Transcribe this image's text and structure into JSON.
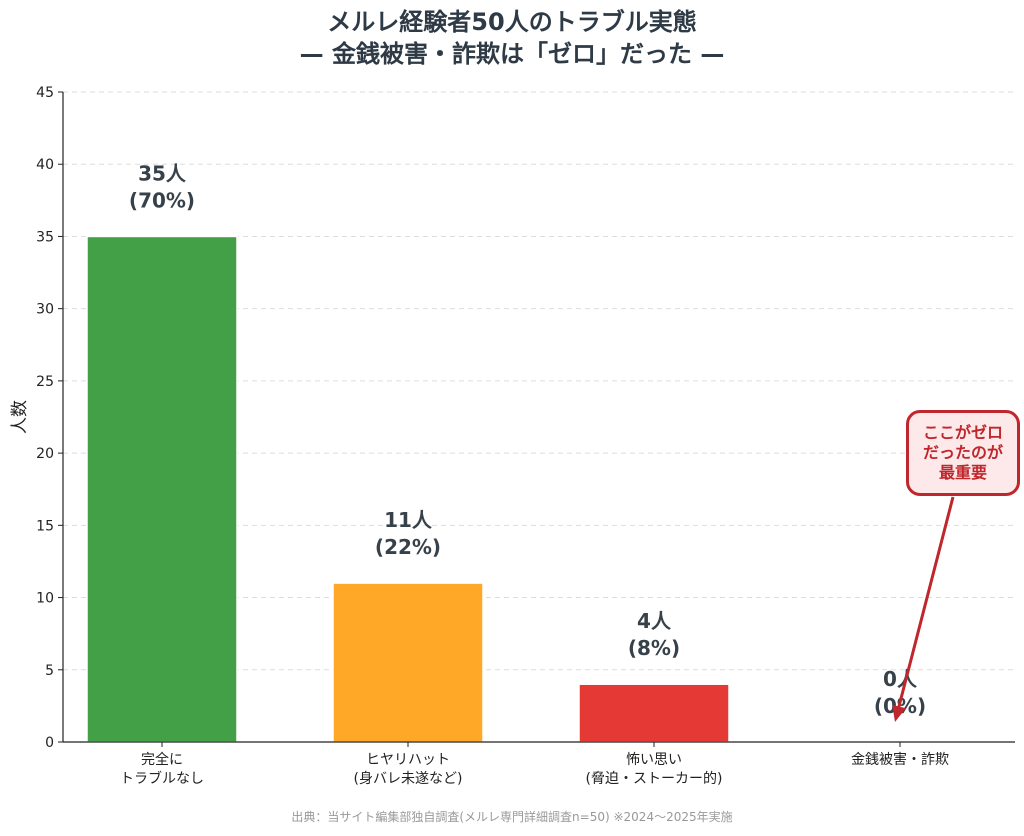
{
  "title": {
    "line1": "メルレ経験者50人のトラブル実態",
    "line2": "— 金銭被害・詐欺は「ゼロ」だった —"
  },
  "source": "出典：当サイト編集部独自調査(メルレ専門詳細調査n=50) ※2024〜2025年実施",
  "annotation": {
    "lines": [
      "ここがゼロ",
      "だったのが",
      "最重要"
    ],
    "color": "#c0272d",
    "background": "#fde9e9"
  },
  "chart_data": {
    "type": "bar",
    "title": "メルレ経験者50人のトラブル実態 — 金銭被害・詐欺は「ゼロ」だった —",
    "xlabel": "",
    "ylabel": "人数",
    "ylim": [
      0,
      45
    ],
    "yticks": [
      0,
      5,
      10,
      15,
      20,
      25,
      30,
      35,
      40,
      45
    ],
    "grid": true,
    "categories": [
      [
        "完全に",
        "トラブルなし"
      ],
      [
        "ヒヤリハット",
        "(身バレ未遂など)"
      ],
      [
        "怖い思い",
        "(脅迫・ストーカー的)"
      ],
      [
        "金銭被害・詐欺"
      ]
    ],
    "values": [
      35,
      11,
      4,
      0
    ],
    "colors": [
      "#43a047",
      "#ffa726",
      "#e53935",
      "#b0b0b0"
    ],
    "data_labels": [
      [
        "35人",
        "(70%)"
      ],
      [
        "11人",
        "(22%)"
      ],
      [
        "4人",
        "(8%)"
      ],
      [
        "0人",
        "(0%)"
      ]
    ]
  }
}
